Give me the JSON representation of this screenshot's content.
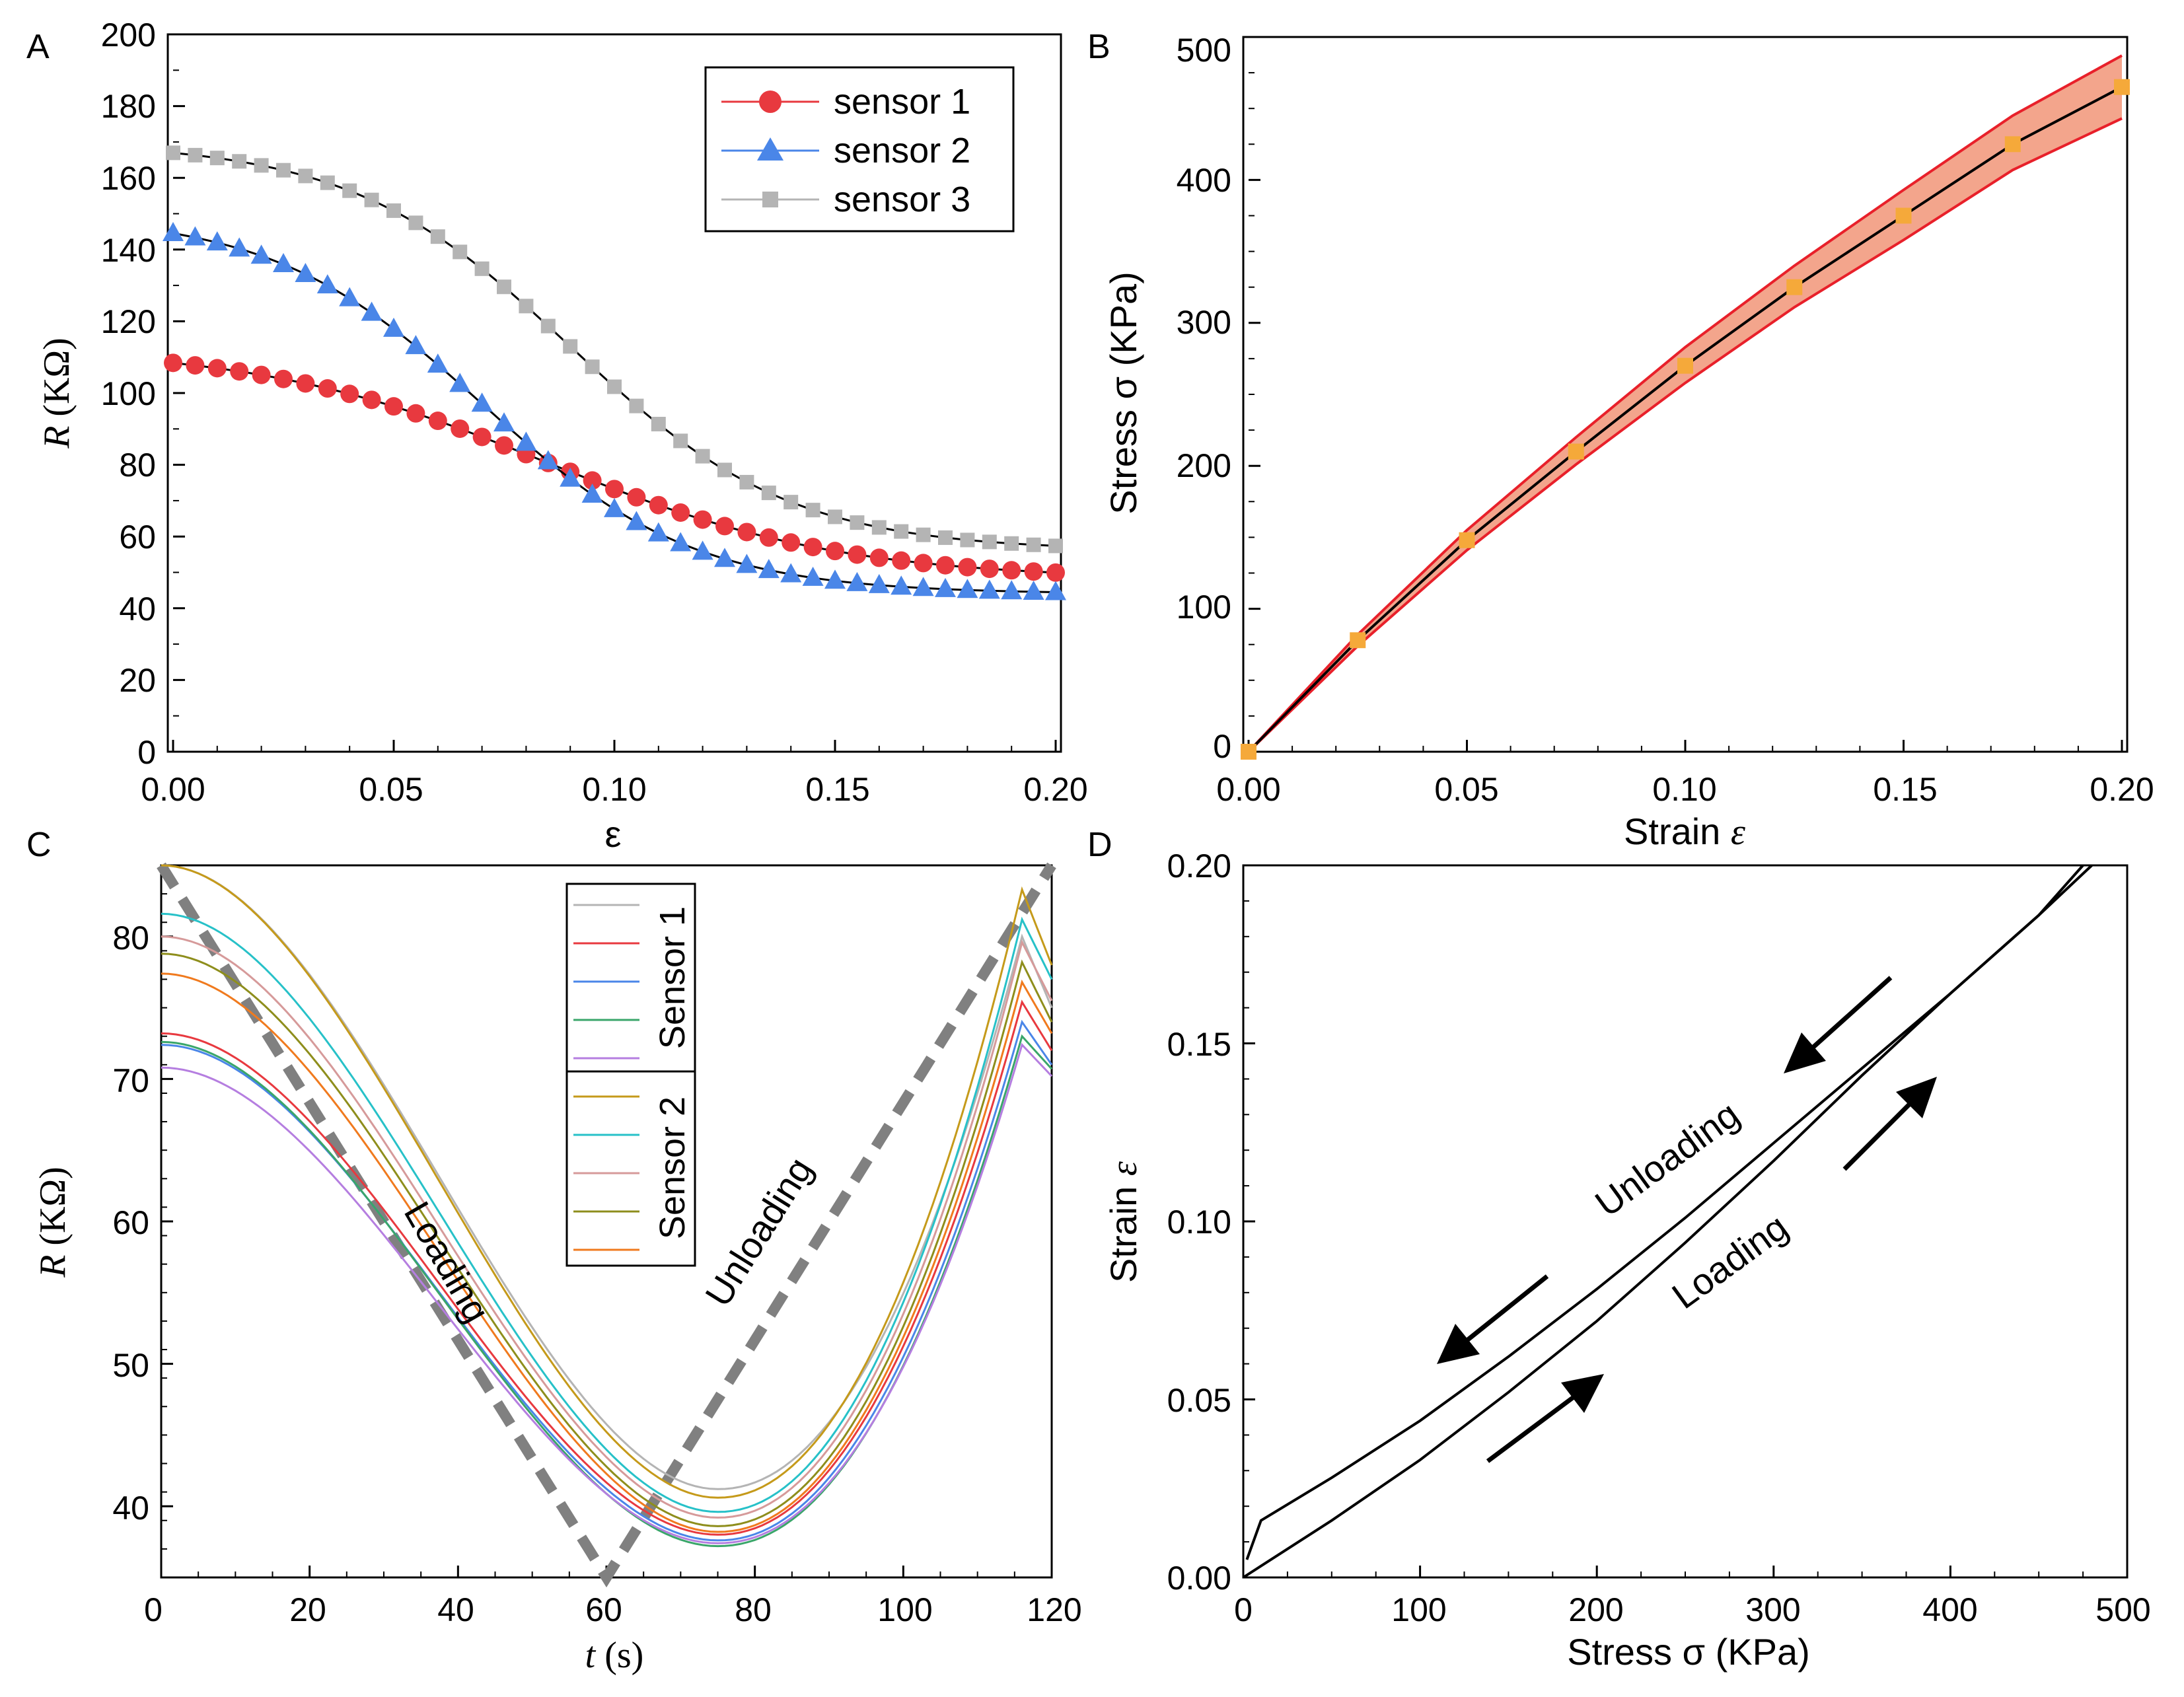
{
  "figure_labels": {
    "a": "A",
    "b": "B",
    "c": "C",
    "d": "D"
  },
  "colors": {
    "sensor1": "#e8393f",
    "sensor2": "#4a86e8",
    "sensor3": "#b4b4b4",
    "bandFill": "#f3a58c",
    "bandEdge": "#e8202a",
    "marker": "#f5a93a",
    "dashed": "#808080"
  },
  "chart_data": [
    {
      "id": "A",
      "type": "line",
      "title": "",
      "xlabel": "ε",
      "ylabel_italic": "R",
      "ylabel_rest": " (KΩ)",
      "xlim": [
        0,
        0.2
      ],
      "ylim": [
        0,
        200
      ],
      "xticks": [
        0,
        0.05,
        0.1,
        0.15,
        0.2
      ],
      "xtick_labels": [
        "0.00",
        "0.05",
        "0.10",
        "0.15",
        "0.20"
      ],
      "yticks": [
        0,
        20,
        40,
        60,
        80,
        100,
        120,
        140,
        160,
        180,
        200
      ],
      "ytick_labels": [
        "0",
        "20",
        "40",
        "60",
        "80",
        "100",
        "120",
        "140",
        "160",
        "180",
        "200"
      ],
      "legend_position": "top-right",
      "series": [
        {
          "name": "sensor 1",
          "marker": "circle",
          "start": 113,
          "end": 48,
          "mid": 0.085,
          "k": 0.033
        },
        {
          "name": "sensor 2",
          "marker": "triangle",
          "start": 150,
          "end": 44,
          "mid": 0.07,
          "k": 0.024
        },
        {
          "name": "sensor 3",
          "marker": "square",
          "start": 170,
          "end": 56,
          "mid": 0.09,
          "k": 0.025
        }
      ]
    },
    {
      "id": "B",
      "type": "line",
      "title": "",
      "xlabel_text": "Strain ",
      "xlabel_italic": "ε",
      "ylabel": "Stress σ (KPa)",
      "xlim": [
        0,
        0.2
      ],
      "ylim": [
        0,
        500
      ],
      "xticks": [
        0,
        0.05,
        0.1,
        0.15,
        0.2
      ],
      "xtick_labels": [
        "0.00",
        "0.05",
        "0.10",
        "0.15",
        "0.20"
      ],
      "yticks": [
        0,
        100,
        200,
        300,
        400,
        500
      ],
      "ytick_labels": [
        "0",
        "100",
        "200",
        "300",
        "400",
        "500"
      ],
      "x": [
        0,
        0.025,
        0.05,
        0.075,
        0.1,
        0.125,
        0.15,
        0.175,
        0.2
      ],
      "mean": [
        0,
        78,
        148,
        210,
        270,
        325,
        375,
        425,
        465
      ],
      "upper": [
        0,
        82,
        155,
        220,
        283,
        340,
        393,
        445,
        487
      ],
      "lower": [
        0,
        74,
        141,
        201,
        258,
        311,
        358,
        407,
        443
      ]
    },
    {
      "id": "C",
      "type": "line",
      "title": "",
      "xlabel_italic": "t",
      "xlabel_rest": " (s)",
      "ylabel_italic": "R",
      "ylabel_rest": " (KΩ)",
      "xlim": [
        0,
        120
      ],
      "ylim": [
        35,
        85
      ],
      "xticks": [
        0,
        20,
        40,
        60,
        80,
        100,
        120
      ],
      "xtick_labels": [
        "0",
        "20",
        "40",
        "60",
        "80",
        "100",
        "120"
      ],
      "yticks": [
        40,
        50,
        60,
        70,
        80
      ],
      "ytick_labels": [
        "40",
        "50",
        "60",
        "70",
        "80"
      ],
      "legend_groups": [
        "Sensor 1",
        "Sensor 2"
      ],
      "annotations": [
        "Loading",
        "Unloading"
      ],
      "reference_line": {
        "x": [
          0,
          60,
          120
        ],
        "y": [
          85,
          35,
          85
        ]
      },
      "series": [
        {
          "group": "Sensor 1",
          "color": "#b4b4b4",
          "start": 85.0,
          "min": 41.2,
          "peak": 80.0,
          "end": 75.0
        },
        {
          "group": "Sensor 1",
          "color": "#e8393f",
          "start": 73.2,
          "min": 38.0,
          "peak": 75.4,
          "end": 72.0
        },
        {
          "group": "Sensor 1",
          "color": "#4a86e8",
          "start": 72.4,
          "min": 37.6,
          "peak": 74.0,
          "end": 71.0
        },
        {
          "group": "Sensor 1",
          "color": "#3aa66a",
          "start": 72.6,
          "min": 37.2,
          "peak": 73.0,
          "end": 70.7
        },
        {
          "group": "Sensor 1",
          "color": "#b57ee0",
          "start": 70.8,
          "min": 37.4,
          "peak": 72.4,
          "end": 70.2
        },
        {
          "group": "Sensor 2",
          "color": "#c59a1a",
          "start": 85.0,
          "min": 40.6,
          "peak": 83.3,
          "end": 78.0
        },
        {
          "group": "Sensor 2",
          "color": "#27c1c8",
          "start": 81.6,
          "min": 39.6,
          "peak": 81.2,
          "end": 77.0
        },
        {
          "group": "Sensor 2",
          "color": "#d69a9a",
          "start": 80.0,
          "min": 39.2,
          "peak": 79.6,
          "end": 75.5
        },
        {
          "group": "Sensor 2",
          "color": "#8e8e1c",
          "start": 78.8,
          "min": 38.6,
          "peak": 78.2,
          "end": 74.0
        },
        {
          "group": "Sensor 2",
          "color": "#f07a1e",
          "start": 77.4,
          "min": 38.2,
          "peak": 76.8,
          "end": 73.2
        }
      ]
    },
    {
      "id": "D",
      "type": "line",
      "title": "",
      "xlabel": "Stress σ (KPa)",
      "ylabel_text": "Strain ",
      "ylabel_italic": "ε",
      "xlim": [
        0,
        500
      ],
      "ylim": [
        0,
        0.2
      ],
      "xticks": [
        0,
        100,
        200,
        300,
        400,
        500
      ],
      "xtick_labels": [
        "0",
        "100",
        "200",
        "300",
        "400",
        "500"
      ],
      "yticks": [
        0,
        0.05,
        0.1,
        0.15,
        0.2
      ],
      "ytick_labels": [
        "0.00",
        "0.05",
        "0.10",
        "0.15",
        "0.20"
      ],
      "annotations": [
        "Unloading",
        "Loading"
      ],
      "unloading": {
        "x": [
          2,
          10,
          50,
          100,
          150,
          200,
          250,
          300,
          350,
          400,
          450,
          475
        ],
        "y": [
          0.005,
          0.016,
          0.028,
          0.044,
          0.062,
          0.081,
          0.101,
          0.122,
          0.143,
          0.164,
          0.186,
          0.2
        ]
      },
      "loading": {
        "x": [
          0,
          50,
          100,
          150,
          200,
          250,
          300,
          350,
          400,
          450,
          480
        ],
        "y": [
          0,
          0.016,
          0.033,
          0.052,
          0.072,
          0.094,
          0.117,
          0.141,
          0.164,
          0.186,
          0.2
        ]
      }
    }
  ]
}
